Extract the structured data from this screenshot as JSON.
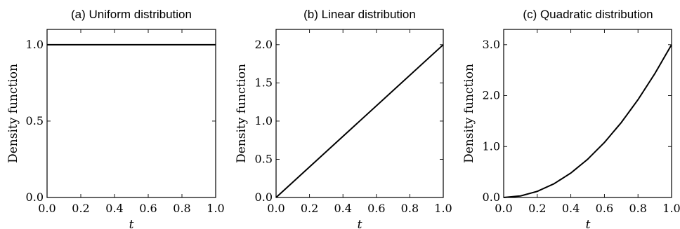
{
  "chart_data": [
    {
      "type": "line",
      "title": "(a) Uniform distribution",
      "xlabel": "t",
      "ylabel": "Density function",
      "xlim": [
        0,
        1
      ],
      "ylim": [
        0,
        1.1
      ],
      "xticks": [
        0,
        0.2,
        0.4,
        0.6,
        0.8,
        1
      ],
      "xtick_labels": [
        "0.0",
        "0.2",
        "0.4",
        "0.6",
        "0.8",
        "1.0"
      ],
      "yticks": [
        0,
        0.5,
        1
      ],
      "ytick_labels": [
        "0.0",
        "0.5",
        "1.0"
      ],
      "grid": false,
      "series": [
        {
          "x": [
            0,
            1
          ],
          "y": [
            1,
            1
          ],
          "color": "#000000"
        }
      ]
    },
    {
      "type": "line",
      "title": "(b) Linear distribution",
      "xlabel": "t",
      "ylabel": "Density function",
      "xlim": [
        0,
        1
      ],
      "ylim": [
        0,
        2.2
      ],
      "xticks": [
        0,
        0.2,
        0.4,
        0.6,
        0.8,
        1
      ],
      "xtick_labels": [
        "0.0",
        "0.2",
        "0.4",
        "0.6",
        "0.8",
        "1.0"
      ],
      "yticks": [
        0,
        0.5,
        1,
        1.5,
        2
      ],
      "ytick_labels": [
        "0.0",
        "0.5",
        "1.0",
        "1.5",
        "2.0"
      ],
      "grid": false,
      "series": [
        {
          "x": [
            0,
            1
          ],
          "y": [
            0,
            2
          ],
          "color": "#000000"
        }
      ]
    },
    {
      "type": "line",
      "title": "(c) Quadratic distribution",
      "xlabel": "t",
      "ylabel": "Density function",
      "xlim": [
        0,
        1
      ],
      "ylim": [
        0,
        3.3
      ],
      "xticks": [
        0,
        0.2,
        0.4,
        0.6,
        0.8,
        1
      ],
      "xtick_labels": [
        "0.0",
        "0.2",
        "0.4",
        "0.6",
        "0.8",
        "1.0"
      ],
      "yticks": [
        0,
        1,
        2,
        3
      ],
      "ytick_labels": [
        "0.0",
        "1.0",
        "2.0",
        "3.0"
      ],
      "grid": false,
      "series": [
        {
          "x": [
            0,
            0.1,
            0.2,
            0.3,
            0.4,
            0.5,
            0.6,
            0.7,
            0.8,
            0.9,
            1
          ],
          "y": [
            0,
            0.03,
            0.12,
            0.27,
            0.48,
            0.75,
            1.08,
            1.47,
            1.92,
            2.43,
            3
          ],
          "color": "#000000"
        }
      ]
    }
  ]
}
